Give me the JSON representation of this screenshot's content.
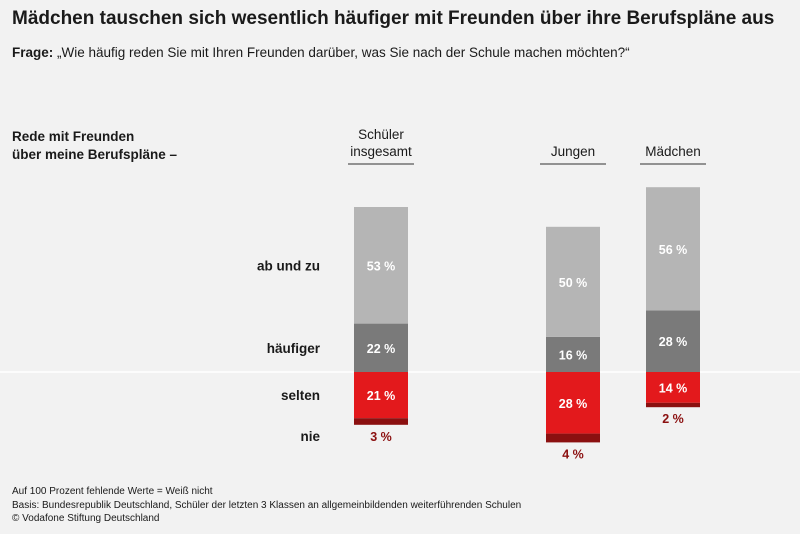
{
  "title": "Mädchen tauschen sich wesentlich häufiger mit Freunden über ihre Berufspläne aus",
  "question_label": "Frage:",
  "question_text": "„Wie häufig reden Sie mit Ihren Freunden darüber, was Sie nach der Schule machen möchten?“",
  "row_header_line1": "Rede mit Freunden",
  "row_header_line2": "über meine Berufspläne –",
  "footer": {
    "line1": "Auf 100 Prozent fehlende Werte = Weiß nicht",
    "line2": "Basis: Bundesrepublik Deutschland, Schüler der letzten 3 Klassen an allgemeinbildenden weiterführenden Schulen",
    "line3": "© Vodafone Stiftung Deutschland"
  },
  "chart_data": {
    "type": "bar",
    "stacked": true,
    "unit": "%",
    "categories": [
      {
        "name": "Schüler insgesamt",
        "lines": [
          "Schüler",
          "insgesamt"
        ]
      },
      {
        "name": "Jungen",
        "lines": [
          "Jungen"
        ]
      },
      {
        "name": "Mädchen",
        "lines": [
          "Mädchen"
        ]
      }
    ],
    "series": [
      {
        "name": "häufiger",
        "values": [
          22,
          16,
          28
        ],
        "labels": [
          "22 %",
          "16 %",
          "28 %"
        ],
        "color": "#7a7a7a",
        "label_color": "#ffffff",
        "direction": "up"
      },
      {
        "name": "ab und zu",
        "values": [
          53,
          50,
          56
        ],
        "labels": [
          "53 %",
          "50 %",
          "56 %"
        ],
        "color": "#b5b5b5",
        "label_color": "#ffffff",
        "direction": "up"
      },
      {
        "name": "selten",
        "values": [
          21,
          28,
          14
        ],
        "labels": [
          "21 %",
          "28 %",
          "14 %"
        ],
        "color": "#e3191c",
        "label_color": "#ffffff",
        "direction": "down"
      },
      {
        "name": "nie",
        "values": [
          3,
          4,
          2
        ],
        "labels": [
          "3 %",
          "4 %",
          "2 %"
        ],
        "color": "#8b1010",
        "label_color": "#8b1010",
        "direction": "down"
      }
    ],
    "legend": "row labels on left"
  }
}
